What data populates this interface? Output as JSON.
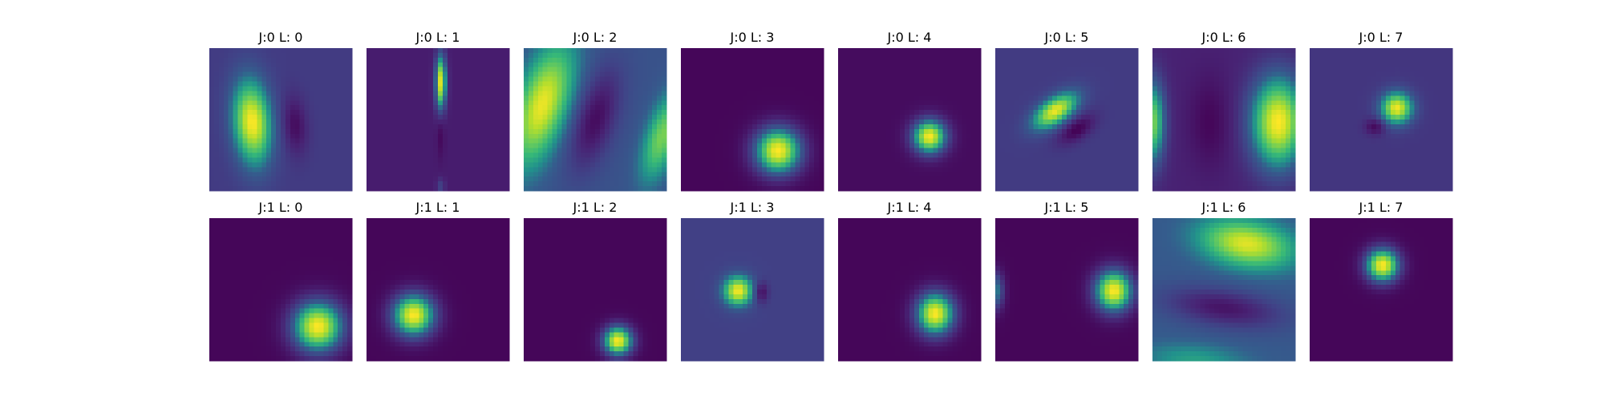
{
  "chart_data": {
    "type": "heatmap",
    "colormap": "viridis",
    "grid": {
      "rows": 2,
      "cols": 8
    },
    "panels": [
      {
        "title": "J:0 L: 0",
        "background": 0.22,
        "blobs": [
          {
            "x": 0.3,
            "y": 0.52,
            "sx": 0.09,
            "sy": 0.2,
            "rot": -5,
            "amp": 0.78
          },
          {
            "x": 0.6,
            "y": 0.54,
            "sx": 0.06,
            "sy": 0.14,
            "rot": -5,
            "amp": -0.18
          }
        ]
      },
      {
        "title": "J:0 L: 1",
        "background": 0.1,
        "blobs": [
          {
            "x": 0.52,
            "y": 0.24,
            "sx": 0.025,
            "sy": 0.13,
            "rot": 0,
            "amp": 0.85
          },
          {
            "x": 0.52,
            "y": 0.6,
            "sx": 0.02,
            "sy": 0.12,
            "rot": 0,
            "amp": -0.08
          },
          {
            "x": 0.52,
            "y": 0.97,
            "sx": 0.02,
            "sy": 0.04,
            "rot": 0,
            "amp": 0.15
          }
        ]
      },
      {
        "title": "J:0 L: 2",
        "background": 0.32,
        "blobs": [
          {
            "x": 0.13,
            "y": 0.4,
            "sx": 0.12,
            "sy": 0.3,
            "rot": 18,
            "amp": 0.65
          },
          {
            "x": 0.5,
            "y": 0.5,
            "sx": 0.1,
            "sy": 0.25,
            "rot": 18,
            "amp": -0.28
          },
          {
            "x": 0.97,
            "y": 0.62,
            "sx": 0.08,
            "sy": 0.22,
            "rot": 18,
            "amp": 0.45
          }
        ]
      },
      {
        "title": "J:0 L: 3",
        "background": 0.02,
        "blobs": [
          {
            "x": 0.68,
            "y": 0.72,
            "sx": 0.11,
            "sy": 0.11,
            "rot": 0,
            "amp": 0.98
          }
        ]
      },
      {
        "title": "J:0 L: 4",
        "background": 0.04,
        "blobs": [
          {
            "x": 0.64,
            "y": 0.62,
            "sx": 0.08,
            "sy": 0.08,
            "rot": 0,
            "amp": 0.96
          }
        ]
      },
      {
        "title": "J:0 L: 5",
        "background": 0.22,
        "blobs": [
          {
            "x": 0.42,
            "y": 0.44,
            "sx": 0.12,
            "sy": 0.06,
            "rot": -35,
            "amp": 0.75
          },
          {
            "x": 0.57,
            "y": 0.57,
            "sx": 0.1,
            "sy": 0.05,
            "rot": -35,
            "amp": -0.22
          }
        ]
      },
      {
        "title": "J:0 L: 6",
        "background": 0.12,
        "blobs": [
          {
            "x": 0.88,
            "y": 0.52,
            "sx": 0.13,
            "sy": 0.22,
            "rot": 0,
            "amp": 0.88
          },
          {
            "x": 0.0,
            "y": 0.52,
            "sx": 0.06,
            "sy": 0.2,
            "rot": 0,
            "amp": 0.65
          },
          {
            "x": 0.4,
            "y": 0.52,
            "sx": 0.1,
            "sy": 0.22,
            "rot": 0,
            "amp": -0.1
          }
        ]
      },
      {
        "title": "J:0 L: 7",
        "background": 0.2,
        "blobs": [
          {
            "x": 0.61,
            "y": 0.42,
            "sx": 0.075,
            "sy": 0.075,
            "rot": 0,
            "amp": 0.78
          },
          {
            "x": 0.46,
            "y": 0.55,
            "sx": 0.05,
            "sy": 0.04,
            "rot": 0,
            "amp": -0.18
          }
        ]
      },
      {
        "title": "J:1 L: 0",
        "background": 0.02,
        "blobs": [
          {
            "x": 0.76,
            "y": 0.76,
            "sx": 0.12,
            "sy": 0.12,
            "rot": 0,
            "amp": 0.98
          }
        ]
      },
      {
        "title": "J:1 L: 1",
        "background": 0.02,
        "blobs": [
          {
            "x": 0.33,
            "y": 0.68,
            "sx": 0.1,
            "sy": 0.1,
            "rot": 0,
            "amp": 0.98
          }
        ]
      },
      {
        "title": "J:1 L: 2",
        "background": 0.02,
        "blobs": [
          {
            "x": 0.66,
            "y": 0.86,
            "sx": 0.07,
            "sy": 0.07,
            "rot": 0,
            "amp": 0.98
          }
        ]
      },
      {
        "title": "J:1 L: 3",
        "background": 0.24,
        "blobs": [
          {
            "x": 0.4,
            "y": 0.51,
            "sx": 0.07,
            "sy": 0.07,
            "rot": 0,
            "amp": 0.75
          },
          {
            "x": 0.56,
            "y": 0.52,
            "sx": 0.035,
            "sy": 0.05,
            "rot": 0,
            "amp": -0.22
          }
        ]
      },
      {
        "title": "J:1 L: 4",
        "background": 0.02,
        "blobs": [
          {
            "x": 0.68,
            "y": 0.67,
            "sx": 0.09,
            "sy": 0.1,
            "rot": 0,
            "amp": 0.98
          }
        ]
      },
      {
        "title": "J:1 L: 5",
        "background": 0.02,
        "blobs": [
          {
            "x": 0.83,
            "y": 0.51,
            "sx": 0.09,
            "sy": 0.1,
            "rot": 0,
            "amp": 0.98
          },
          {
            "x": 0.0,
            "y": 0.51,
            "sx": 0.04,
            "sy": 0.09,
            "rot": 0,
            "amp": 0.45
          }
        ]
      },
      {
        "title": "J:1 L: 6",
        "background": 0.35,
        "blobs": [
          {
            "x": 0.66,
            "y": 0.18,
            "sx": 0.22,
            "sy": 0.11,
            "rot": 10,
            "amp": 0.6
          },
          {
            "x": 0.5,
            "y": 0.63,
            "sx": 0.28,
            "sy": 0.09,
            "rot": 8,
            "amp": -0.28
          },
          {
            "x": 0.3,
            "y": 1.0,
            "sx": 0.25,
            "sy": 0.08,
            "rot": 5,
            "amp": 0.2
          }
        ]
      },
      {
        "title": "J:1 L: 7",
        "background": 0.02,
        "blobs": [
          {
            "x": 0.51,
            "y": 0.33,
            "sx": 0.08,
            "sy": 0.08,
            "rot": 0,
            "amp": 0.98
          }
        ]
      }
    ]
  }
}
